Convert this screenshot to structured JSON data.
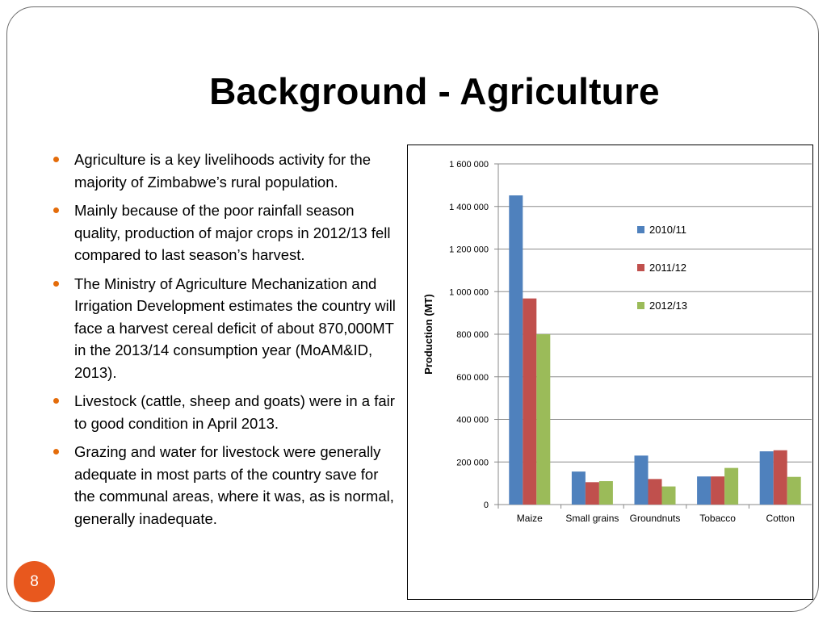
{
  "slide": {
    "title": "Background - Agriculture",
    "page_number": "8",
    "bullets": [
      "Agriculture is a key livelihoods activity for the majority of Zimbabwe’s rural population.",
      "Mainly because of the poor  rainfall season quality, production of major crops in 2012/13 fell compared to last season’s harvest.",
      "The Ministry of Agriculture Mechanization and Irrigation Development estimates the country will face a harvest cereal deficit of about 870,000MT in the 2013/14 consumption year (MoAM&ID, 2013).",
      "Livestock (cattle, sheep and goats)  were in a fair to good condition in April 2013.",
      "Grazing and water for livestock were generally adequate in most parts of the country save for the communal areas, where it was, as is normal, generally inadequate."
    ],
    "bullet_color": "#e46c0a",
    "badge_color": "#e8581e"
  },
  "chart_data": {
    "type": "bar",
    "title": "",
    "xlabel": "",
    "ylabel": "Production (MT)",
    "ylim": [
      0,
      1600000
    ],
    "yticks": [
      0,
      200000,
      400000,
      600000,
      800000,
      1000000,
      1200000,
      1400000,
      1600000
    ],
    "ytick_labels": [
      "0",
      "200 000",
      "400 000",
      "600 000",
      "800 000",
      "1 000 000",
      "1 200 000",
      "1 400 000",
      "1 600 000"
    ],
    "grid": true,
    "legend_position": "right",
    "categories": [
      "Maize",
      "Small grains",
      "Groundnuts",
      "Tobacco",
      "Cotton"
    ],
    "series": [
      {
        "name": "2010/11",
        "color": "#4f81bd",
        "values": [
          1452000,
          155000,
          230000,
          132000,
          250000
        ]
      },
      {
        "name": "2011/12",
        "color": "#c0504d",
        "values": [
          968000,
          105000,
          120000,
          132000,
          255000
        ]
      },
      {
        "name": "2012/13",
        "color": "#9bbb59",
        "values": [
          800000,
          110000,
          85000,
          172000,
          130000
        ]
      }
    ]
  }
}
